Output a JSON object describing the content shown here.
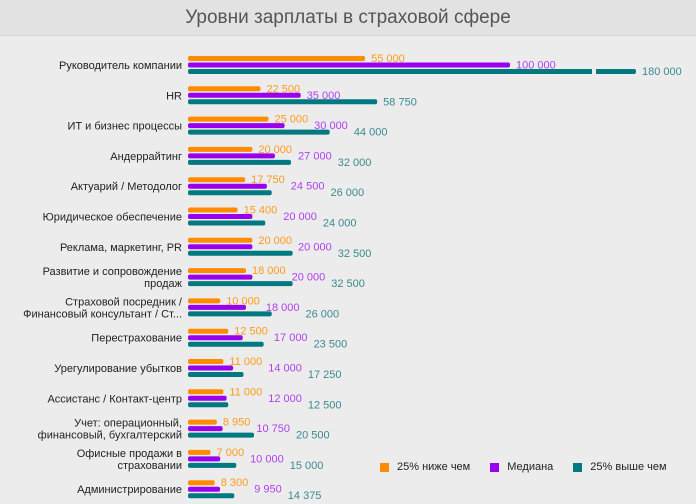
{
  "chart_data": {
    "type": "bar",
    "orientation": "horizontal",
    "title": "Уровни зарплаты в страховой сфере",
    "categories": [
      [
        "Руководитель компании"
      ],
      [
        "HR"
      ],
      [
        "ИТ и бизнес процессы"
      ],
      [
        "Андеррайтинг"
      ],
      [
        "Актуарий / Методолог"
      ],
      [
        "Юридическое обеспечение"
      ],
      [
        "Реклама, маркетинг, PR"
      ],
      [
        "Развитие и сопровождение",
        "продаж"
      ],
      [
        "Страховой посредник /",
        "Финансовый консультант / Ст..."
      ],
      [
        "Перестрахование"
      ],
      [
        "Урегулирование убытков"
      ],
      [
        "Ассистанс / Контакт-центр"
      ],
      [
        "Учет: операционный,",
        "финансовый, бухгалтерский"
      ],
      [
        "Офисные продажи в",
        "страховании"
      ],
      [
        "Администрирование"
      ]
    ],
    "series": [
      {
        "name": "25% ниже чем",
        "color": "#ff8c00",
        "labelColor": "#ff9a1a",
        "values": [
          55000,
          22500,
          25000,
          20000,
          17750,
          15400,
          20000,
          18000,
          10000,
          12500,
          11000,
          11000,
          8950,
          7000,
          8300
        ],
        "labels": [
          "55 000",
          "22 500",
          "25 000",
          "20 000",
          "17 750",
          "15 400",
          "20 000",
          "18 000",
          "10 000",
          "12 500",
          "11 000",
          "11 000",
          "8 950",
          "7 000",
          "8 300"
        ]
      },
      {
        "name": "Медиана",
        "color": "#9900ee",
        "labelColor": "#b040f0",
        "values": [
          100000,
          35000,
          30000,
          27000,
          24500,
          20000,
          20000,
          20000,
          18000,
          17000,
          14000,
          12000,
          10750,
          10000,
          9950
        ],
        "labels": [
          "100 000",
          "35 000",
          "30 000",
          "27 000",
          "24 500",
          "20 000",
          "20 000",
          "20 000",
          "18 000",
          "17 000",
          "14 000",
          "12 000",
          "10 750",
          "10 000",
          "9 950"
        ]
      },
      {
        "name": "25% выше чем",
        "color": "#007a80",
        "labelColor": "#3a8a90",
        "values": [
          180000,
          58750,
          44000,
          32000,
          26000,
          24000,
          32500,
          32500,
          26000,
          23500,
          17250,
          12500,
          20500,
          15000,
          14375
        ],
        "labels": [
          "180 000",
          "58 750",
          "44 000",
          "32 000",
          "26 000",
          "24 000",
          "32 500",
          "32 500",
          "26 000",
          "23 500",
          "17 250",
          "12 500",
          "20 500",
          "15 000",
          "14 375"
        ]
      }
    ],
    "axis_break": true,
    "legend_position": "bottom-right",
    "grid": false
  }
}
